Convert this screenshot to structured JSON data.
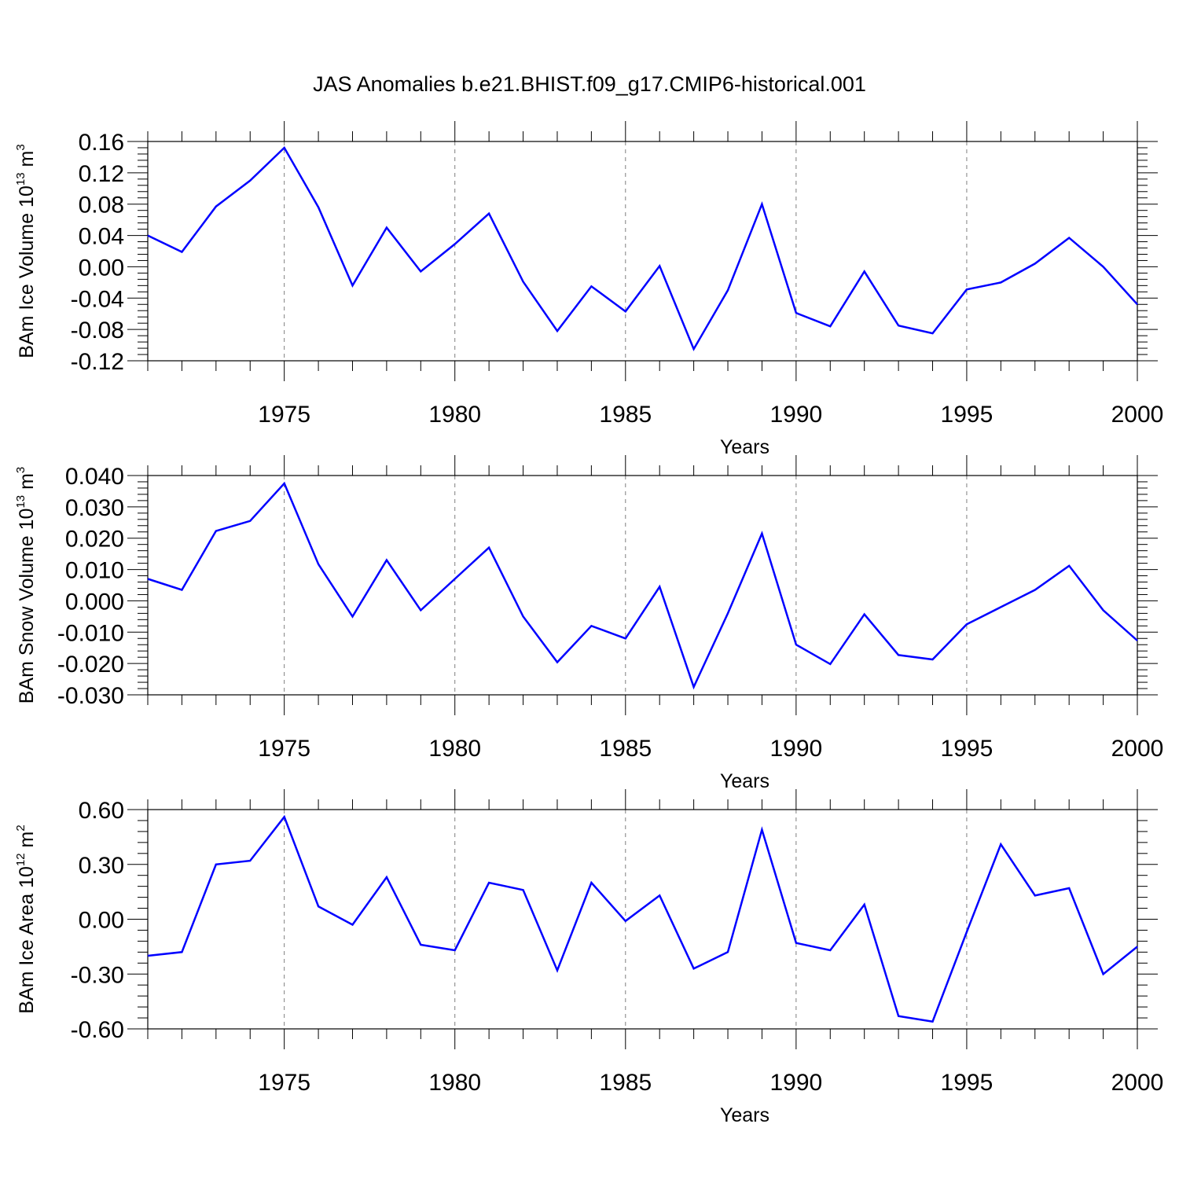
{
  "title": "JAS Anomalies b.e21.BHIST.f09_g17.CMIP6-historical.001",
  "line_color": "#0000ff",
  "grid_color": "#7f7f7f",
  "chart_data": [
    {
      "type": "line",
      "ylabel": {
        "base": "BAm Ice Volume 10",
        "exp": "13",
        "unit": " m",
        "unit_exp": "3"
      },
      "xlabel": "Years",
      "xlim": [
        1971,
        2000
      ],
      "ylim": [
        -0.12,
        0.16
      ],
      "yticks": [
        -0.12,
        -0.08,
        -0.04,
        0.0,
        0.04,
        0.08,
        0.12,
        0.16
      ],
      "ytick_labels": [
        "-0.12",
        "-0.08",
        "-0.04",
        "0.00",
        "0.04",
        "0.08",
        "0.12",
        "0.16"
      ],
      "xticks": [
        1975,
        1980,
        1985,
        1990,
        1995,
        2000
      ],
      "xtick_labels": [
        "1975",
        "1980",
        "1985",
        "1990",
        "1995",
        "2000"
      ],
      "grid": "vertical dashed at major x ticks",
      "x": [
        1971,
        1972,
        1973,
        1974,
        1975,
        1976,
        1977,
        1978,
        1979,
        1980,
        1981,
        1982,
        1983,
        1984,
        1985,
        1986,
        1987,
        1988,
        1989,
        1990,
        1991,
        1992,
        1993,
        1994,
        1995,
        1996,
        1997,
        1998,
        1999,
        2000
      ],
      "values": [
        0.04,
        0.019,
        0.077,
        0.11,
        0.152,
        0.076,
        -0.024,
        0.05,
        -0.006,
        0.029,
        0.068,
        -0.019,
        -0.082,
        -0.025,
        -0.057,
        0.001,
        -0.105,
        -0.03,
        0.08,
        -0.059,
        -0.076,
        -0.006,
        -0.075,
        -0.085,
        -0.029,
        -0.02,
        0.004,
        0.037,
        0.0,
        -0.048
      ]
    },
    {
      "type": "line",
      "ylabel": {
        "base": "BAm Snow Volume 10",
        "exp": "13",
        "unit": " m",
        "unit_exp": "3"
      },
      "xlabel": "Years",
      "xlim": [
        1971,
        2000
      ],
      "ylim": [
        -0.03,
        0.04
      ],
      "yticks": [
        -0.03,
        -0.02,
        -0.01,
        0.0,
        0.01,
        0.02,
        0.03,
        0.04
      ],
      "ytick_labels": [
        "-0.030",
        "-0.020",
        "-0.010",
        "0.000",
        "0.010",
        "0.020",
        "0.030",
        "0.040"
      ],
      "xticks": [
        1975,
        1980,
        1985,
        1990,
        1995,
        2000
      ],
      "xtick_labels": [
        "1975",
        "1980",
        "1985",
        "1990",
        "1995",
        "2000"
      ],
      "grid": "vertical dashed at major x ticks",
      "x": [
        1971,
        1972,
        1973,
        1974,
        1975,
        1976,
        1977,
        1978,
        1979,
        1980,
        1981,
        1982,
        1983,
        1984,
        1985,
        1986,
        1987,
        1988,
        1989,
        1990,
        1991,
        1992,
        1993,
        1994,
        1995,
        1996,
        1997,
        1998,
        1999,
        2000
      ],
      "values": [
        0.007,
        0.0035,
        0.0223,
        0.0255,
        0.0375,
        0.0117,
        -0.005,
        0.013,
        -0.003,
        0.007,
        0.017,
        -0.005,
        -0.0196,
        -0.008,
        -0.012,
        0.0045,
        -0.0275,
        -0.004,
        0.0215,
        -0.014,
        -0.0202,
        -0.0043,
        -0.0173,
        -0.0187,
        -0.0075,
        -0.002,
        0.0035,
        0.0112,
        -0.003,
        -0.0127
      ]
    },
    {
      "type": "line",
      "ylabel": {
        "base": "BAm Ice Area 10",
        "exp": "12",
        "unit": " m",
        "unit_exp": "2"
      },
      "xlabel": "Years",
      "xlim": [
        1971,
        2000
      ],
      "ylim": [
        -0.6,
        0.6
      ],
      "yticks": [
        -0.6,
        -0.3,
        0.0,
        0.3,
        0.6
      ],
      "ytick_labels": [
        "-0.60",
        "-0.30",
        "0.00",
        "0.30",
        "0.60"
      ],
      "xticks": [
        1975,
        1980,
        1985,
        1990,
        1995,
        2000
      ],
      "xtick_labels": [
        "1975",
        "1980",
        "1985",
        "1990",
        "1995",
        "2000"
      ],
      "grid": "vertical dashed at major x ticks",
      "x": [
        1971,
        1972,
        1973,
        1974,
        1975,
        1976,
        1977,
        1978,
        1979,
        1980,
        1981,
        1982,
        1983,
        1984,
        1985,
        1986,
        1987,
        1988,
        1989,
        1990,
        1991,
        1992,
        1993,
        1994,
        1995,
        1996,
        1997,
        1998,
        1999,
        2000
      ],
      "values": [
        -0.2,
        -0.18,
        0.3,
        0.32,
        0.56,
        0.07,
        -0.03,
        0.23,
        -0.14,
        -0.17,
        0.2,
        0.16,
        -0.28,
        0.2,
        -0.01,
        0.13,
        -0.27,
        -0.18,
        0.49,
        -0.13,
        -0.17,
        0.08,
        -0.53,
        -0.56,
        -0.07,
        0.41,
        0.13,
        0.17,
        -0.3,
        -0.15
      ]
    }
  ]
}
